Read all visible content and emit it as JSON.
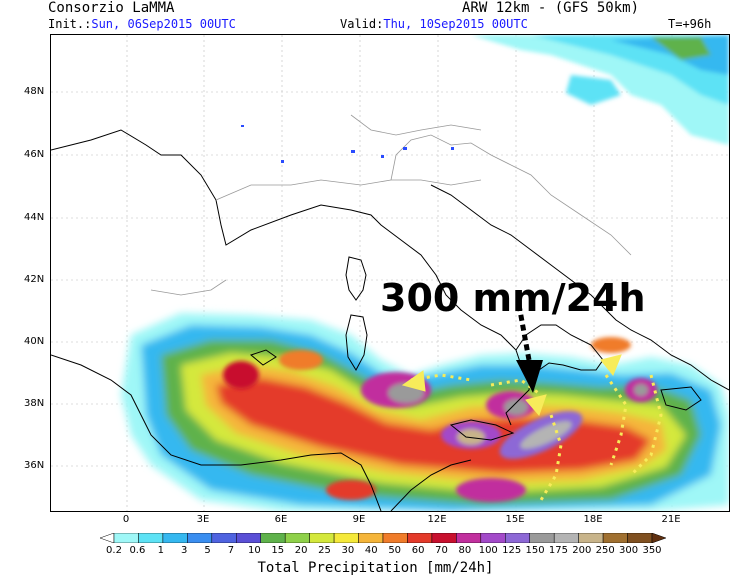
{
  "header": {
    "org": "Consorzio LaMMA",
    "model": "ARW 12km - (GFS 50km)",
    "init_label": "Init.:",
    "init_value": "Sun, 06Sep2015 00UTC",
    "valid_label": "Valid:",
    "valid_value": "Thu, 10Sep2015 00UTC",
    "lead": "T=+96h"
  },
  "map": {
    "lat_labels": [
      "48N",
      "46N",
      "44N",
      "42N",
      "40N",
      "38N",
      "36N"
    ],
    "lon_labels": [
      "0",
      "3E",
      "6E",
      "9E",
      "12E",
      "15E",
      "18E",
      "21E"
    ],
    "annotation": "300 mm/24h",
    "coastline_color": "#000000",
    "border_color": "#999999"
  },
  "colorbar": {
    "title": "Total Precipitation [mm/24h]",
    "levels": [
      "0.2",
      "0.6",
      "1",
      "3",
      "5",
      "7",
      "10",
      "15",
      "20",
      "25",
      "30",
      "40",
      "50",
      "60",
      "70",
      "80",
      "100",
      "125",
      "150",
      "175",
      "200",
      "250",
      "300",
      "350"
    ],
    "colors": [
      "#ffffff",
      "#9ff7f7",
      "#5de2f5",
      "#35b8f0",
      "#3a8ef0",
      "#4f63e0",
      "#5a4fd6",
      "#5fb24b",
      "#8fd14a",
      "#d4e83c",
      "#f5e93a",
      "#f5b53a",
      "#f07c2a",
      "#e43a2a",
      "#c8102e",
      "#c12f9e",
      "#a34ac9",
      "#8d68d6",
      "#9a9a9a",
      "#b4b4b4",
      "#c8b48a",
      "#a07030",
      "#805020",
      "#603010"
    ]
  }
}
